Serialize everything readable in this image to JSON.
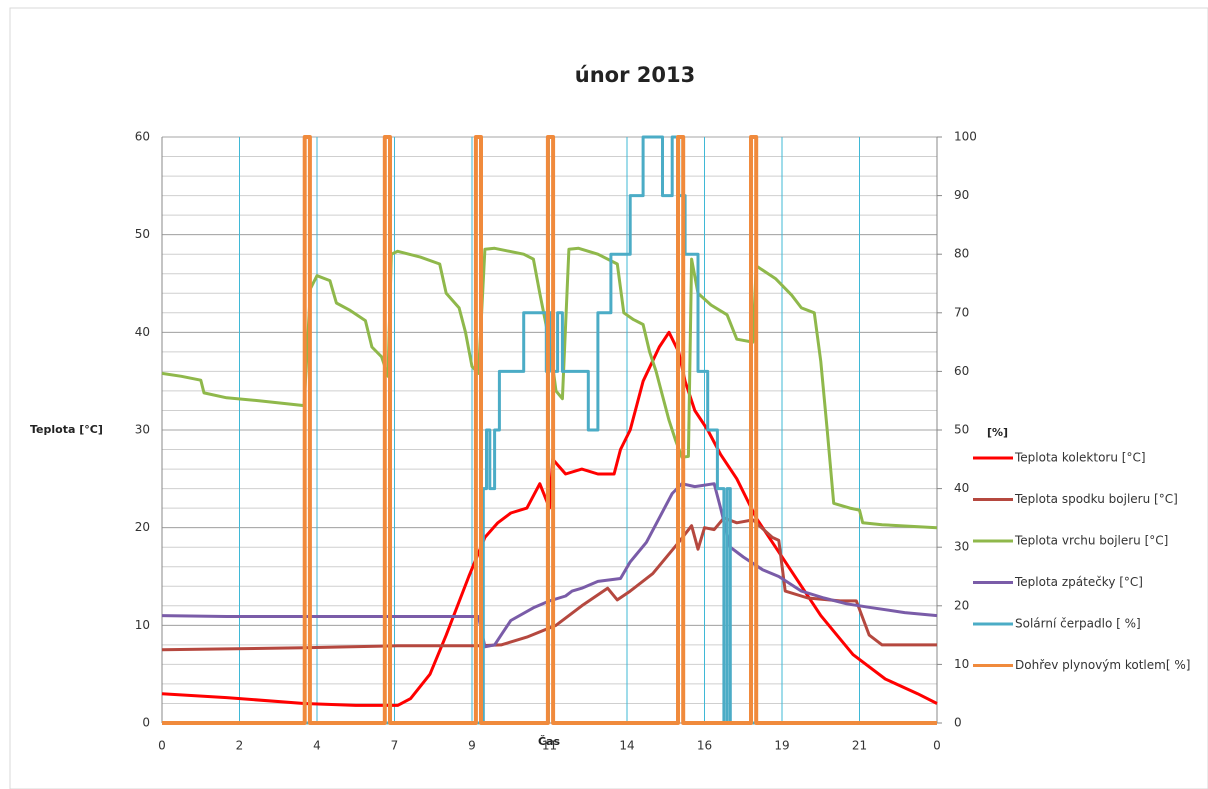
{
  "chart_data": {
    "type": "line",
    "title": "únor 2013",
    "x_label": "Čas",
    "y_label": "Teplota [°C]",
    "y2_label": "[%]",
    "xlim": [
      0,
      24
    ],
    "xticks": [
      0,
      {
        "value": 2.4,
        "label": "2"
      },
      {
        "value": 4.8,
        "label": "4"
      },
      {
        "value": 7.2,
        "label": "7"
      },
      {
        "value": 9.6,
        "label": "9"
      },
      {
        "value": 12,
        "label": "11"
      },
      {
        "value": 14.4,
        "label": "14"
      },
      {
        "value": 16.8,
        "label": "16"
      },
      {
        "value": 19.2,
        "label": "19"
      },
      {
        "value": 21.6,
        "label": "21"
      },
      {
        "value": 24,
        "label": "0"
      }
    ],
    "ylim": [
      0,
      60
    ],
    "yticks": [
      0,
      10,
      20,
      30,
      40,
      50,
      60
    ],
    "y_minor_grid_step": 2,
    "y2lim": [
      0,
      100
    ],
    "y2ticks": [
      0,
      10,
      20,
      30,
      40,
      50,
      60,
      70,
      80,
      90,
      100
    ],
    "grid": true,
    "legend": "right",
    "series": [
      {
        "name": "Teplota kolektoru [°C]",
        "color": "#ff0000",
        "x": [
          0,
          2,
          4.4,
          6,
          7.3,
          7.7,
          8.3,
          8.8,
          9.5,
          10,
          10.4,
          10.8,
          11.3,
          11.7,
          12,
          12.1,
          12.5,
          13,
          13.5,
          14,
          14.2,
          14.5,
          14.9,
          15.4,
          15.7,
          16,
          16.2,
          16.5,
          16.9,
          17.3,
          17.8,
          18.4,
          19.4,
          20.4,
          21.4,
          22.4,
          23.4,
          24
        ],
        "values": [
          3,
          2.6,
          2,
          1.8,
          1.8,
          2.5,
          5,
          9,
          15,
          19,
          20.5,
          21.5,
          22,
          24.5,
          22,
          27,
          25.5,
          26,
          25.5,
          25.5,
          28,
          30,
          35,
          38.5,
          40,
          38,
          35,
          32,
          30,
          27.5,
          25,
          21,
          16,
          11,
          7,
          4.5,
          3,
          2
        ]
      },
      {
        "name": "Teplota spodku bojleru [°C]",
        "color": "#b5483f",
        "x": [
          0,
          4.4,
          7.3,
          9.8,
          10.5,
          11.3,
          12.2,
          13,
          13.8,
          14.1,
          14.5,
          15.2,
          16,
          16.4,
          16.6,
          16.8,
          17.1,
          17.4,
          17.8,
          18.3,
          18.9,
          19.1,
          19.3,
          20,
          21,
          21.5,
          21.9,
          22.3,
          24
        ],
        "values": [
          7.5,
          7.7,
          7.9,
          7.9,
          8,
          8.8,
          10,
          12,
          13.8,
          12.6,
          13.5,
          15.3,
          18.5,
          20.2,
          17.8,
          20,
          19.8,
          21,
          20.5,
          20.8,
          19,
          18.7,
          13.5,
          12.8,
          12.5,
          12.5,
          9,
          8,
          8
        ]
      },
      {
        "name": "Teplota vrchu bojleru [°C]",
        "color": "#8fb84b",
        "x": [
          0,
          0.6,
          1.2,
          1.3,
          2,
          3,
          4.4,
          4.6,
          4.8,
          5.2,
          5.4,
          5.8,
          6.3,
          6.5,
          6.8,
          7,
          7.1,
          7.3,
          8,
          8.6,
          8.8,
          9.2,
          9.4,
          9.6,
          9.8,
          10,
          10.3,
          11.2,
          11.5,
          11.7,
          12,
          12.2,
          12.4,
          12.6,
          12.9,
          13.5,
          14.1,
          14.3,
          14.6,
          14.9,
          15.1,
          15.3,
          15.5,
          15.7,
          15.9,
          16.1,
          16.3,
          16.4,
          16.6,
          17,
          17.5,
          17.8,
          18.3,
          18.4,
          19,
          19.5,
          19.8,
          20.2,
          20.4,
          20.6,
          20.8,
          21.3,
          21.6,
          21.7,
          22.3,
          24
        ],
        "values": [
          35.8,
          35.5,
          35.1,
          33.8,
          33.3,
          33,
          32.5,
          44.5,
          45.8,
          45.3,
          43,
          42.3,
          41.2,
          38.5,
          37.5,
          35.5,
          48,
          48.3,
          47.7,
          47,
          44,
          42.5,
          40,
          36.5,
          35.8,
          48.5,
          48.6,
          48,
          47.5,
          44,
          39,
          34,
          33.2,
          48.5,
          48.6,
          48,
          47,
          42,
          41.3,
          40.8,
          38,
          36,
          33.5,
          31,
          29,
          27.2,
          27.3,
          47.5,
          44,
          42.8,
          41.8,
          39.3,
          39,
          46.8,
          45.5,
          43.8,
          42.5,
          42,
          37,
          30,
          22.5,
          22,
          21.8,
          20.5,
          20.3,
          20
        ]
      },
      {
        "name": "Teplota zpátečky [°C]",
        "color": "#7a5ca8",
        "x": [
          0,
          2,
          9.8,
          10,
          10.3,
          10.5,
          10.8,
          11.5,
          12,
          12.5,
          12.7,
          13,
          13.5,
          14.2,
          14.5,
          15,
          15.4,
          15.8,
          16.1,
          16.5,
          17.1,
          17.3,
          17.6,
          18,
          18.6,
          19.1,
          19.8,
          20.5,
          21.2,
          22,
          23,
          24
        ],
        "values": [
          11,
          10.9,
          10.9,
          7.8,
          8,
          9,
          10.5,
          11.8,
          12.5,
          13,
          13.5,
          13.8,
          14.5,
          14.8,
          16.5,
          18.5,
          21,
          23.5,
          24.5,
          24.2,
          24.5,
          22,
          18,
          17,
          15.7,
          15,
          13.5,
          12.8,
          12.2,
          11.8,
          11.3,
          11
        ]
      },
      {
        "name": "Solární čerpadlo [ %]",
        "color": "#4bacc6",
        "axis": "y2",
        "x": [
          0,
          9.95,
          9.95,
          10.05,
          10.05,
          10.15,
          10.15,
          10.3,
          10.3,
          10.45,
          10.45,
          11.2,
          11.2,
          11.9,
          11.9,
          12,
          12,
          12.1,
          12.1,
          12.25,
          12.25,
          12.4,
          12.4,
          13.2,
          13.2,
          13.5,
          13.5,
          13.9,
          13.9,
          14.5,
          14.5,
          14.9,
          14.9,
          15.5,
          15.5,
          15.8,
          15.8,
          16,
          16,
          16.2,
          16.2,
          16.6,
          16.6,
          16.9,
          16.9,
          17.2,
          17.2,
          17.4,
          17.4,
          17.5,
          17.5,
          17.6,
          17.6,
          24
        ],
        "values": [
          0,
          0,
          40,
          40,
          50,
          50,
          40,
          40,
          50,
          50,
          60,
          60,
          70,
          70,
          60,
          60,
          70,
          70,
          60,
          60,
          70,
          70,
          60,
          60,
          50,
          50,
          70,
          70,
          80,
          80,
          90,
          90,
          100,
          100,
          90,
          90,
          100,
          100,
          90,
          90,
          80,
          80,
          60,
          60,
          50,
          50,
          40,
          40,
          0,
          0,
          40,
          40,
          0,
          0
        ]
      },
      {
        "name": "Dohřev plynovým kotlem[ %]",
        "color": "#f08a3c",
        "axis": "y2",
        "x": [
          0,
          4.42,
          4.42,
          4.58,
          4.58,
          6.9,
          6.9,
          7.06,
          7.06,
          9.72,
          9.72,
          9.88,
          9.88,
          11.95,
          11.95,
          12.11,
          12.11,
          15.98,
          15.98,
          16.14,
          16.14,
          18.24,
          18.24,
          18.4,
          18.4,
          24
        ],
        "values": [
          0,
          0,
          100,
          100,
          0,
          0,
          100,
          100,
          0,
          0,
          100,
          100,
          0,
          0,
          100,
          100,
          0,
          0,
          100,
          100,
          0,
          0,
          100,
          100,
          0,
          0
        ]
      }
    ]
  }
}
